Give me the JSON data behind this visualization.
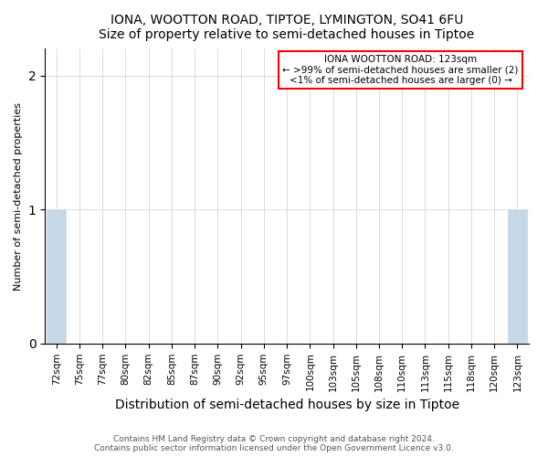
{
  "title": "IONA, WOOTTON ROAD, TIPTOE, LYMINGTON, SO41 6FU",
  "subtitle": "Size of property relative to semi-detached houses in Tiptoe",
  "xlabel": "Distribution of semi-detached houses by size in Tiptoe",
  "ylabel": "Number of semi-detached properties",
  "categories": [
    "72sqm",
    "75sqm",
    "77sqm",
    "80sqm",
    "82sqm",
    "85sqm",
    "87sqm",
    "90sqm",
    "92sqm",
    "95sqm",
    "97sqm",
    "100sqm",
    "103sqm",
    "105sqm",
    "108sqm",
    "110sqm",
    "113sqm",
    "115sqm",
    "118sqm",
    "120sqm",
    "123sqm"
  ],
  "values": [
    1,
    0,
    0,
    0,
    0,
    0,
    0,
    0,
    0,
    0,
    0,
    0,
    0,
    0,
    0,
    0,
    0,
    0,
    0,
    0,
    1
  ],
  "bar_color": "#c5d8e8",
  "ylim": [
    0,
    2.2
  ],
  "yticks": [
    0,
    1,
    2
  ],
  "annotation_title": "IONA WOOTTON ROAD: 123sqm",
  "annotation_line1": "← >99% of semi-detached houses are smaller (2)",
  "annotation_line2": "<1% of semi-detached houses are larger (0) →",
  "footnote1": "Contains HM Land Registry data © Crown copyright and database right 2024.",
  "footnote2": "Contains public sector information licensed under the Open Government Licence v3.0.",
  "background_color": "#ffffff",
  "grid_color": "#cccccc"
}
